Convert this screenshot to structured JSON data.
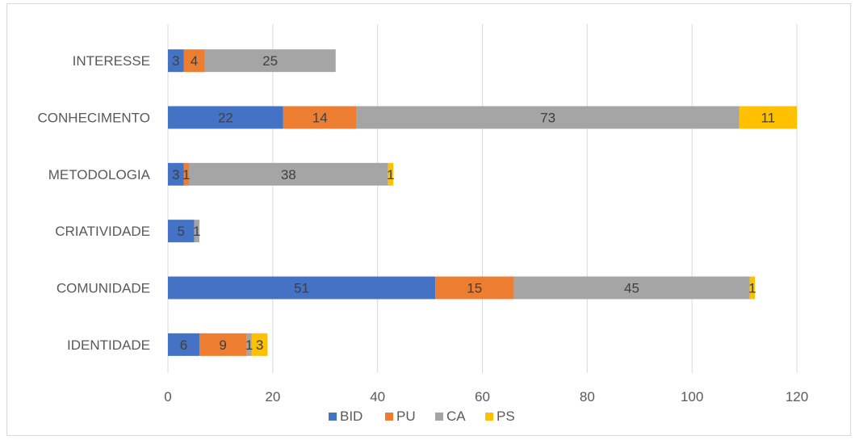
{
  "chart_data": {
    "type": "bar",
    "orientation": "horizontal",
    "stacked": true,
    "categories": [
      "IDENTIDADE",
      "COMUNIDADE",
      "CRIATIVIDADE",
      "METODOLOGIA",
      "CONHECIMENTO",
      "INTERESSE"
    ],
    "series": [
      {
        "name": "BID",
        "color": "#4472C4",
        "values": [
          6,
          51,
          5,
          3,
          22,
          3
        ]
      },
      {
        "name": "PU",
        "color": "#ED7D31",
        "values": [
          9,
          15,
          0,
          1,
          14,
          4
        ]
      },
      {
        "name": "CA",
        "color": "#A5A5A5",
        "values": [
          1,
          45,
          1,
          38,
          73,
          25
        ]
      },
      {
        "name": "PS",
        "color": "#FFC000",
        "values": [
          3,
          1,
          0,
          1,
          11,
          0
        ]
      }
    ],
    "xlim": [
      0,
      120
    ],
    "xticks": [
      0,
      20,
      40,
      60,
      80,
      100,
      120
    ],
    "grid": true,
    "legend_position": "bottom",
    "title": "",
    "xlabel": "",
    "ylabel": ""
  }
}
